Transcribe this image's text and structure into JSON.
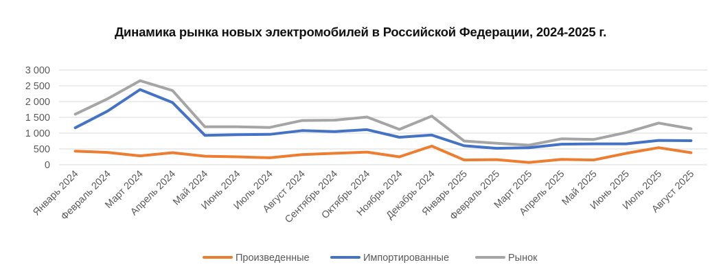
{
  "chart_data": {
    "type": "line",
    "title": "Динамика рынка новых электромобилей в Российской Федерации, 2024-2025 г.",
    "xlabel": "",
    "ylabel": "",
    "ylim": [
      0,
      3000
    ],
    "y_ticks": [
      "0",
      "500",
      "1 000",
      "1 500",
      "2 000",
      "2 500",
      "3 000"
    ],
    "y_tick_values": [
      0,
      500,
      1000,
      1500,
      2000,
      2500,
      3000
    ],
    "grid": true,
    "legend_position": "bottom",
    "categories": [
      "Январь 2024",
      "Февраль 2024",
      "Март 2024",
      "Апрель 2024",
      "Май 2024",
      "Июнь 2024",
      "Июль 2024",
      "Август 2024",
      "Сентябрь 2024",
      "Октябрь 2024",
      "Ноябрь 2024",
      "Декабрь 2024",
      "Январь 2025",
      "Февраль 2025",
      "Март 2025",
      "Апрель 2025",
      "Май 2025",
      "Июнь 2025",
      "Июль 2025",
      "Август 2025"
    ],
    "series": [
      {
        "name": "Произведенные",
        "color": "#ED7D31",
        "values": [
          430,
          390,
          280,
          380,
          270,
          250,
          220,
          320,
          360,
          400,
          250,
          590,
          150,
          160,
          70,
          170,
          150,
          360,
          540,
          380
        ]
      },
      {
        "name": "Импортированные",
        "color": "#4472C4",
        "values": [
          1170,
          1700,
          2380,
          1970,
          930,
          950,
          960,
          1080,
          1050,
          1110,
          870,
          940,
          600,
          520,
          540,
          650,
          660,
          660,
          770,
          760
        ]
      },
      {
        "name": "Рынок",
        "color": "#A5A5A5",
        "values": [
          1600,
          2090,
          2660,
          2350,
          1200,
          1200,
          1180,
          1400,
          1410,
          1510,
          1120,
          1540,
          750,
          680,
          620,
          820,
          800,
          1020,
          1320,
          1140
        ]
      }
    ]
  }
}
